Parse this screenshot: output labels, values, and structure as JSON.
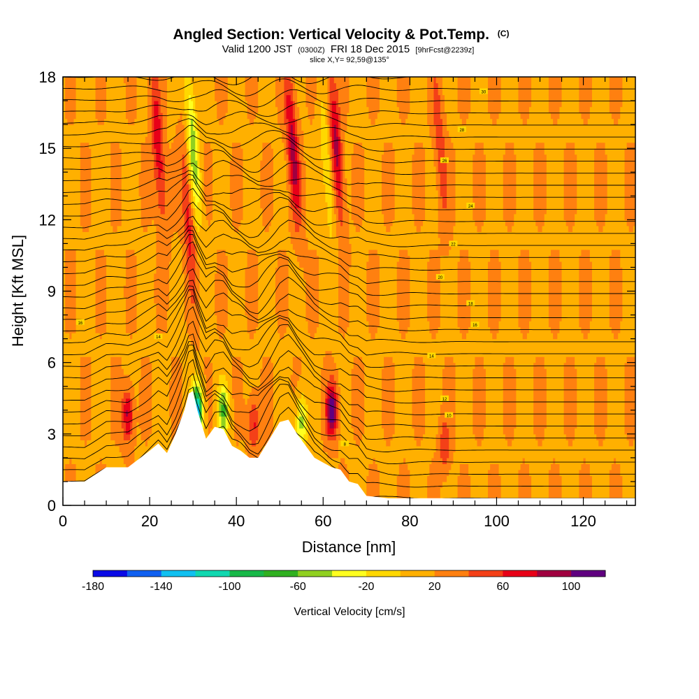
{
  "chart_data": {
    "type": "heatmap",
    "title": "Angled Section: Vertical Velocity & Pot.Temp.",
    "title_suffix": "(C)",
    "subtitle_parts": [
      "Valid 1200 JST",
      "(0300Z)",
      "FRI 18 Dec 2015",
      "[9hrFcst@2239z]"
    ],
    "slice_label": "slice X,Y= 92,59@135°",
    "xlabel": "Distance [nm]",
    "ylabel": "Height [Kft MSL]",
    "xlim": [
      0,
      132
    ],
    "ylim": [
      0,
      18
    ],
    "x_ticks": [
      0,
      20,
      40,
      60,
      80,
      100,
      120
    ],
    "y_ticks": [
      0,
      3,
      6,
      9,
      12,
      15,
      18
    ],
    "grid": false,
    "colorbar": {
      "title": "Vertical Velocity [cm/s]",
      "placement": "bottom",
      "tick_labels": [
        "-180",
        "-140",
        "-100",
        "-60",
        "-20",
        "20",
        "60",
        "100"
      ],
      "tick_values": [
        -180,
        -140,
        -100,
        -60,
        -20,
        20,
        60,
        100
      ],
      "min": -180,
      "max": 120,
      "colors": [
        "#0a0ae6",
        "#1060f0",
        "#10c0f0",
        "#10d8b0",
        "#18b848",
        "#30b020",
        "#90d020",
        "#ffff20",
        "#ffd800",
        "#ffb000",
        "#ff8010",
        "#f44018",
        "#e80018",
        "#a00040",
        "#600080"
      ]
    },
    "terrain": {
      "x": [
        0,
        5,
        10,
        15,
        20,
        22,
        24,
        26,
        28,
        29,
        30,
        31,
        33,
        35,
        37,
        39,
        41,
        43,
        45,
        47,
        50,
        52,
        54,
        56,
        58,
        60,
        62,
        64,
        66,
        68,
        70,
        75,
        80,
        85,
        90,
        100,
        110,
        120,
        125,
        130,
        132
      ],
      "height": [
        1.0,
        1.0,
        1.6,
        1.6,
        2.3,
        2.6,
        2.2,
        3.0,
        4.0,
        4.7,
        4.8,
        4.0,
        2.8,
        3.3,
        3.2,
        2.5,
        2.3,
        2.0,
        2.0,
        2.6,
        3.5,
        3.6,
        3.0,
        2.5,
        2.0,
        1.8,
        1.6,
        1.5,
        1.0,
        0.9,
        0.4,
        0.3,
        0.3,
        0.3,
        0.3,
        0.3,
        0.3,
        0.3,
        0.3,
        0.3,
        0.3
      ]
    },
    "vertical_velocity_features": [
      {
        "x": 15,
        "z": 3.8,
        "w": 70
      },
      {
        "x": 22,
        "z": 15,
        "w": 60
      },
      {
        "x": 29,
        "z": 12,
        "w": 50
      },
      {
        "x": 30,
        "z": 15,
        "w": -70
      },
      {
        "x": 31,
        "z": 4,
        "w": -150
      },
      {
        "x": 37,
        "z": 4,
        "w": -80
      },
      {
        "x": 44,
        "z": 3.5,
        "w": 50
      },
      {
        "x": 53,
        "z": 15,
        "w": 70
      },
      {
        "x": 55,
        "z": 3.5,
        "w": -70
      },
      {
        "x": 61,
        "z": 14,
        "w": -40
      },
      {
        "x": 62,
        "z": 4,
        "w": 100
      },
      {
        "x": 63,
        "z": 15,
        "w": 70
      },
      {
        "x": 87,
        "z": 15,
        "w": 35
      },
      {
        "x": 88,
        "z": 2.5,
        "w": 40
      }
    ],
    "theta_contour_labels": [
      {
        "x": 97,
        "z": 17.4,
        "text": "30"
      },
      {
        "x": 92,
        "z": 15.8,
        "text": "28"
      },
      {
        "x": 88,
        "z": 14.5,
        "text": "26"
      },
      {
        "x": 94,
        "z": 12.6,
        "text": "24"
      },
      {
        "x": 90,
        "z": 11.0,
        "text": "22"
      },
      {
        "x": 87,
        "z": 9.6,
        "text": "20"
      },
      {
        "x": 94,
        "z": 8.5,
        "text": "18"
      },
      {
        "x": 95,
        "z": 7.6,
        "text": "16"
      },
      {
        "x": 85,
        "z": 6.3,
        "text": "14"
      },
      {
        "x": 88,
        "z": 4.5,
        "text": "12"
      },
      {
        "x": 89,
        "z": 3.8,
        "text": "10"
      },
      {
        "x": 4,
        "z": 7.7,
        "text": "16"
      },
      {
        "x": 22,
        "z": 7.1,
        "text": "14"
      },
      {
        "x": 65,
        "z": 2.6,
        "text": "8"
      }
    ]
  }
}
